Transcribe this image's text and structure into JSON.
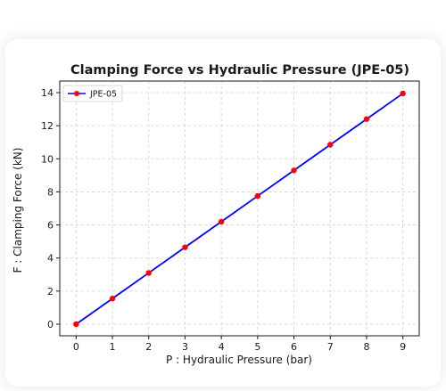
{
  "chart_data": {
    "type": "line",
    "title": "Clamping Force vs Hydraulic Pressure (JPE-05)",
    "xlabel": "P : Hydraulic Pressure (bar)",
    "ylabel": "F : Clamping Force (kN)",
    "xlim": [
      -0.45,
      9.45
    ],
    "ylim": [
      -0.7,
      14.7
    ],
    "xticks": [
      0,
      1,
      2,
      3,
      4,
      5,
      6,
      7,
      8,
      9
    ],
    "yticks": [
      0,
      2,
      4,
      6,
      8,
      10,
      12,
      14
    ],
    "grid": true,
    "legend_position": "top-left",
    "series": [
      {
        "name": "JPE-05",
        "line_color": "#0000ff",
        "marker_color": "#ff0000",
        "x": [
          0,
          1,
          2,
          3,
          4,
          5,
          6,
          7,
          8,
          9
        ],
        "y": [
          0,
          1.55,
          3.1,
          4.65,
          6.2,
          7.75,
          9.3,
          10.85,
          12.4,
          13.95
        ]
      }
    ]
  }
}
